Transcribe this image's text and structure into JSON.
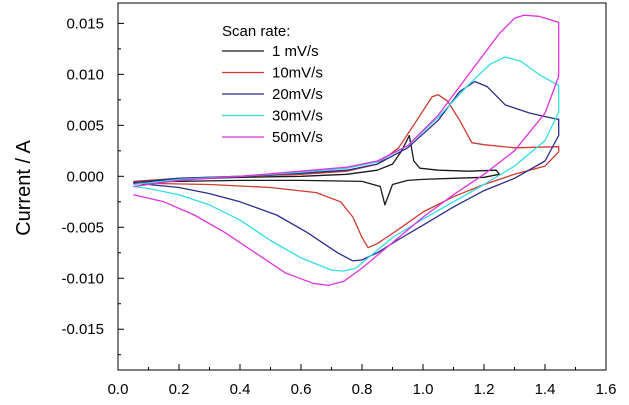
{
  "chart_data": {
    "type": "line",
    "title": "",
    "xlabel": "",
    "ylabel": "Current / A",
    "xlim": [
      0.0,
      1.6
    ],
    "ylim": [
      -0.019,
      0.017
    ],
    "xticks": [
      0.0,
      0.2,
      0.4,
      0.6,
      0.8,
      1.0,
      1.2,
      1.4,
      1.6
    ],
    "xtick_labels": [
      "0.0",
      "0.2",
      "0.4",
      "0.6",
      "0.8",
      "1.0",
      "1.2",
      "1.4",
      "1.6"
    ],
    "yticks": [
      0.015,
      0.01,
      0.005,
      0.0,
      -0.005,
      -0.01,
      -0.015
    ],
    "ytick_labels": [
      "0.015",
      "0.010",
      "0.005",
      "0.000",
      "-0.005",
      "-0.010",
      "-0.015"
    ],
    "grid": false,
    "legend": {
      "title": "Scan rate:",
      "placement": "top-center"
    },
    "series": [
      {
        "name": "1 mV/s",
        "color": "#1a1a1a",
        "points": [
          [
            0.05,
            -0.0006
          ],
          [
            0.2,
            -0.0003
          ],
          [
            0.4,
            -0.0001
          ],
          [
            0.6,
            0.0
          ],
          [
            0.75,
            0.0002
          ],
          [
            0.85,
            0.0006
          ],
          [
            0.9,
            0.0012
          ],
          [
            0.93,
            0.0025
          ],
          [
            0.955,
            0.004
          ],
          [
            0.97,
            0.0015
          ],
          [
            0.99,
            0.0008
          ],
          [
            1.05,
            0.0006
          ],
          [
            1.15,
            0.0005
          ],
          [
            1.24,
            0.0006
          ],
          [
            1.25,
            0.0002
          ],
          [
            1.2,
            -0.0001
          ],
          [
            1.1,
            -0.0002
          ],
          [
            1.0,
            -0.0003
          ],
          [
            0.95,
            -0.0004
          ],
          [
            0.9,
            -0.0008
          ],
          [
            0.875,
            -0.0028
          ],
          [
            0.86,
            -0.001
          ],
          [
            0.8,
            -0.0005
          ],
          [
            0.6,
            -0.0004
          ],
          [
            0.4,
            -0.0004
          ],
          [
            0.2,
            -0.0005
          ],
          [
            0.05,
            -0.0006
          ]
        ]
      },
      {
        "name": "10mV/s",
        "color": "#d03a2f",
        "points": [
          [
            0.05,
            -0.0005
          ],
          [
            0.2,
            -0.0002
          ],
          [
            0.4,
            0.0
          ],
          [
            0.6,
            0.0002
          ],
          [
            0.75,
            0.0005
          ],
          [
            0.85,
            0.0012
          ],
          [
            0.92,
            0.0028
          ],
          [
            0.98,
            0.0055
          ],
          [
            1.03,
            0.0078
          ],
          [
            1.05,
            0.008
          ],
          [
            1.08,
            0.0074
          ],
          [
            1.12,
            0.0055
          ],
          [
            1.16,
            0.0033
          ],
          [
            1.2,
            0.0031
          ],
          [
            1.3,
            0.0028
          ],
          [
            1.445,
            0.0029
          ],
          [
            1.445,
            0.0024
          ],
          [
            1.4,
            0.001
          ],
          [
            1.3,
            0.0002
          ],
          [
            1.2,
            -0.0008
          ],
          [
            1.1,
            -0.002
          ],
          [
            1.0,
            -0.0035
          ],
          [
            0.92,
            -0.0052
          ],
          [
            0.85,
            -0.0066
          ],
          [
            0.82,
            -0.007
          ],
          [
            0.8,
            -0.006
          ],
          [
            0.77,
            -0.004
          ],
          [
            0.73,
            -0.0025
          ],
          [
            0.65,
            -0.0016
          ],
          [
            0.5,
            -0.0011
          ],
          [
            0.3,
            -0.0008
          ],
          [
            0.1,
            -0.0007
          ],
          [
            0.05,
            -0.0006
          ]
        ]
      },
      {
        "name": "20mV/s",
        "color": "#2b2d8e",
        "points": [
          [
            0.05,
            -0.0006
          ],
          [
            0.2,
            -0.0002
          ],
          [
            0.4,
            0.0
          ],
          [
            0.6,
            0.0003
          ],
          [
            0.75,
            0.0006
          ],
          [
            0.85,
            0.0012
          ],
          [
            0.95,
            0.0028
          ],
          [
            1.05,
            0.0055
          ],
          [
            1.12,
            0.0083
          ],
          [
            1.17,
            0.0093
          ],
          [
            1.21,
            0.0088
          ],
          [
            1.27,
            0.007
          ],
          [
            1.35,
            0.0062
          ],
          [
            1.44,
            0.0056
          ],
          [
            1.445,
            0.0056
          ],
          [
            1.445,
            0.004
          ],
          [
            1.4,
            0.0015
          ],
          [
            1.3,
            -0.0002
          ],
          [
            1.2,
            -0.0014
          ],
          [
            1.1,
            -0.003
          ],
          [
            1.0,
            -0.0048
          ],
          [
            0.92,
            -0.0062
          ],
          [
            0.85,
            -0.0075
          ],
          [
            0.8,
            -0.0082
          ],
          [
            0.77,
            -0.0083
          ],
          [
            0.72,
            -0.0075
          ],
          [
            0.62,
            -0.0055
          ],
          [
            0.52,
            -0.0038
          ],
          [
            0.4,
            -0.0025
          ],
          [
            0.3,
            -0.0017
          ],
          [
            0.2,
            -0.0011
          ],
          [
            0.1,
            -0.0008
          ],
          [
            0.05,
            -0.0007
          ]
        ]
      },
      {
        "name": "30mV/s",
        "color": "#33dde6",
        "points": [
          [
            0.05,
            -0.0008
          ],
          [
            0.2,
            -0.0003
          ],
          [
            0.4,
            0.0
          ],
          [
            0.6,
            0.0004
          ],
          [
            0.75,
            0.0008
          ],
          [
            0.85,
            0.0014
          ],
          [
            0.95,
            0.003
          ],
          [
            1.05,
            0.0058
          ],
          [
            1.15,
            0.009
          ],
          [
            1.22,
            0.011
          ],
          [
            1.27,
            0.0117
          ],
          [
            1.32,
            0.0113
          ],
          [
            1.38,
            0.01
          ],
          [
            1.445,
            0.0089
          ],
          [
            1.445,
            0.0063
          ],
          [
            1.4,
            0.0035
          ],
          [
            1.3,
            0.001
          ],
          [
            1.2,
            -0.0008
          ],
          [
            1.1,
            -0.0025
          ],
          [
            1.0,
            -0.0042
          ],
          [
            0.9,
            -0.006
          ],
          [
            0.82,
            -0.008
          ],
          [
            0.78,
            -0.009
          ],
          [
            0.74,
            -0.0093
          ],
          [
            0.7,
            -0.0092
          ],
          [
            0.6,
            -0.008
          ],
          [
            0.5,
            -0.0063
          ],
          [
            0.4,
            -0.0043
          ],
          [
            0.3,
            -0.0028
          ],
          [
            0.2,
            -0.0018
          ],
          [
            0.1,
            -0.0012
          ],
          [
            0.05,
            -0.001
          ]
        ]
      },
      {
        "name": "50mV/s",
        "color": "#dd33dd",
        "points": [
          [
            0.05,
            -0.001
          ],
          [
            0.2,
            -0.0004
          ],
          [
            0.4,
            0.0
          ],
          [
            0.6,
            0.0005
          ],
          [
            0.75,
            0.0009
          ],
          [
            0.85,
            0.0015
          ],
          [
            0.95,
            0.003
          ],
          [
            1.05,
            0.006
          ],
          [
            1.15,
            0.01
          ],
          [
            1.25,
            0.014
          ],
          [
            1.3,
            0.0155
          ],
          [
            1.33,
            0.0158
          ],
          [
            1.38,
            0.0157
          ],
          [
            1.445,
            0.0151
          ],
          [
            1.445,
            0.0098
          ],
          [
            1.4,
            0.0062
          ],
          [
            1.3,
            0.0025
          ],
          [
            1.2,
            0.0002
          ],
          [
            1.1,
            -0.0018
          ],
          [
            1.0,
            -0.004
          ],
          [
            0.9,
            -0.0065
          ],
          [
            0.8,
            -0.009
          ],
          [
            0.74,
            -0.0103
          ],
          [
            0.69,
            -0.0107
          ],
          [
            0.64,
            -0.0105
          ],
          [
            0.55,
            -0.0095
          ],
          [
            0.45,
            -0.0075
          ],
          [
            0.35,
            -0.0055
          ],
          [
            0.25,
            -0.0038
          ],
          [
            0.15,
            -0.0025
          ],
          [
            0.05,
            -0.0018
          ]
        ]
      }
    ]
  }
}
